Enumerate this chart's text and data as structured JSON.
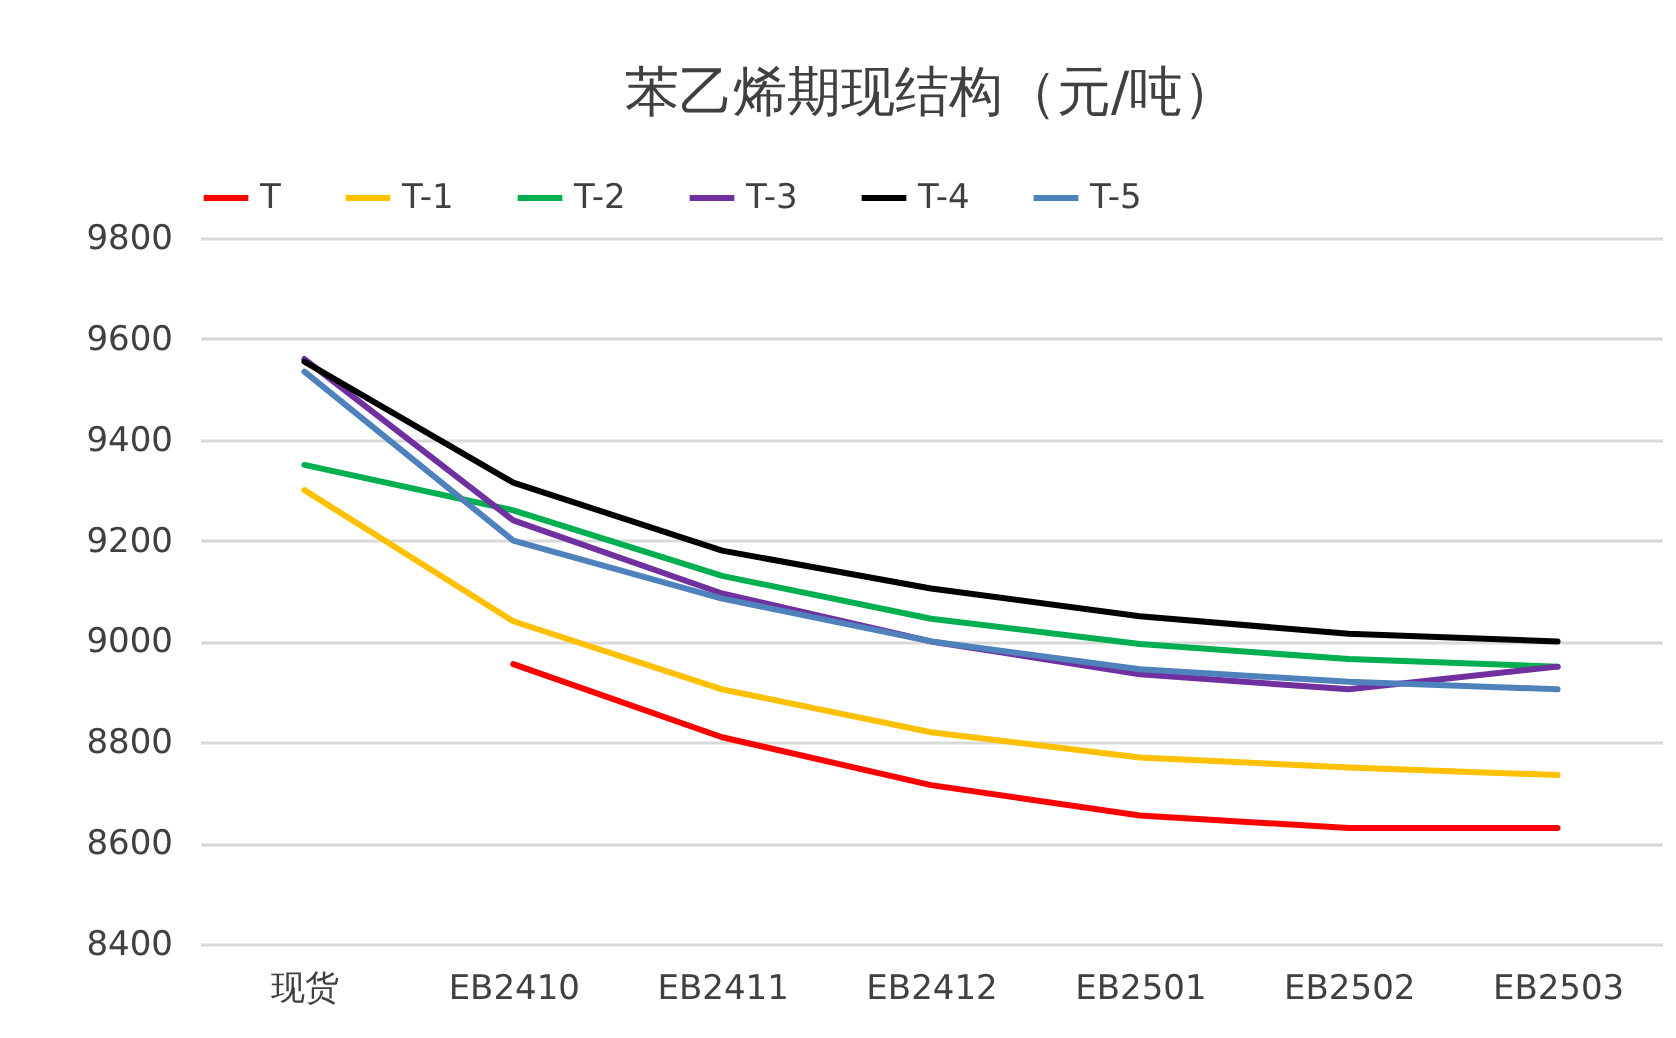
{
  "chart_data": {
    "type": "line",
    "title": "苯乙烯期现结构（元/吨）",
    "categories": [
      "现货",
      "EB2410",
      "EB2411",
      "EB2412",
      "EB2501",
      "EB2502",
      "EB2503"
    ],
    "series": [
      {
        "name": "T",
        "color": "#ff0000",
        "values": [
          null,
          8955,
          8810,
          8715,
          8655,
          8630,
          8630
        ]
      },
      {
        "name": "T-1",
        "color": "#ffc000",
        "values": [
          9300,
          9040,
          8905,
          8820,
          8770,
          8750,
          8735
        ]
      },
      {
        "name": "T-2",
        "color": "#00b050",
        "values": [
          9350,
          9260,
          9130,
          9045,
          8995,
          8965,
          8950
        ]
      },
      {
        "name": "T-3",
        "color": "#7030a0",
        "values": [
          9560,
          9240,
          9095,
          9000,
          8935,
          8905,
          8950
        ]
      },
      {
        "name": "T-4",
        "color": "#000000",
        "values": [
          9555,
          9315,
          9180,
          9105,
          9050,
          9015,
          9000
        ]
      },
      {
        "name": "T-5",
        "color": "#4f81bd",
        "values": [
          9535,
          9200,
          9085,
          9000,
          8945,
          8920,
          8905
        ]
      }
    ],
    "ylim": [
      8400,
      9800
    ],
    "yticks": [
      8400,
      8600,
      8800,
      9000,
      9200,
      9400,
      9600,
      9800
    ],
    "grid": "y",
    "legend": "top"
  }
}
